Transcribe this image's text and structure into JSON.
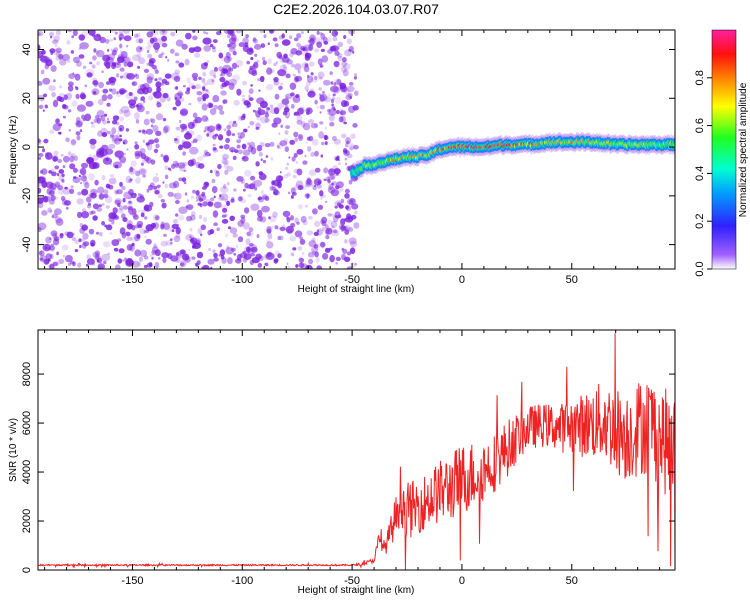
{
  "title": "C2E2.2026.104.03.07.R07",
  "colors": {
    "snr_line": "#ee2222",
    "noise_dots": "#7a1fe0",
    "axis": "#000000"
  },
  "colorbar": {
    "label": "Normalized spectral amplitude",
    "range": [
      0.0,
      1.0
    ],
    "ticks": [
      0.0,
      0.2,
      0.4,
      0.6,
      0.8
    ],
    "tick_labels": [
      "0.0",
      "0.2",
      "0.4",
      "0.6",
      "0.8"
    ]
  },
  "chart_data": [
    {
      "type": "heatmap",
      "xlabel": "Height of straight line (km)",
      "ylabel": "Frequency (Hz)",
      "xlim": [
        -193,
        97
      ],
      "ylim": [
        -50,
        48
      ],
      "xticks": [
        -150,
        -100,
        -50,
        0,
        50
      ],
      "xtick_labels": [
        "-150",
        "-100",
        "-50",
        "0",
        "50"
      ],
      "yticks": [
        -40,
        -20,
        0,
        20,
        40
      ],
      "ytick_labels": [
        "-40",
        "-20",
        "0",
        "20",
        "40"
      ],
      "noise_region_x": [
        -193,
        -48
      ],
      "ridge": {
        "x": [
          -50,
          -45,
          -40,
          -35,
          -30,
          -25,
          -20,
          -15,
          -10,
          -5,
          0,
          10,
          20,
          30,
          40,
          50,
          60,
          70,
          80,
          90,
          97
        ],
        "frequency": [
          -11,
          -8,
          -7,
          -6,
          -5,
          -4,
          -4,
          -3,
          -1,
          0,
          0,
          0,
          1,
          1,
          2,
          2,
          2,
          1,
          1,
          1,
          1
        ],
        "amplitude": [
          0.45,
          0.55,
          0.6,
          0.65,
          0.7,
          0.7,
          0.72,
          0.75,
          0.8,
          0.85,
          0.85,
          0.9,
          0.85,
          0.75,
          0.7,
          0.7,
          0.65,
          0.65,
          0.6,
          0.55,
          0.55
        ]
      }
    },
    {
      "type": "line",
      "xlabel": "Height of straight line (km)",
      "ylabel": "SNR (10 * v/v)",
      "xlim": [
        -193,
        97
      ],
      "ylim": [
        0,
        9800
      ],
      "xticks": [
        -150,
        -100,
        -50,
        0,
        50
      ],
      "xtick_labels": [
        "-150",
        "-100",
        "-50",
        "0",
        "50"
      ],
      "yticks": [
        0,
        2000,
        4000,
        6000,
        8000
      ],
      "ytick_labels": [
        "0",
        "2000",
        "4000",
        "6000",
        "8000"
      ],
      "series": [
        {
          "name": "SNR",
          "x": [
            -193,
            -150,
            -100,
            -60,
            -50,
            -45,
            -40,
            -38,
            -35,
            -30,
            -28,
            -25,
            -20,
            -15,
            -10,
            -5,
            0,
            5,
            10,
            15,
            20,
            25,
            30,
            35,
            40,
            45,
            50,
            55,
            60,
            65,
            70,
            75,
            80,
            85,
            90,
            95,
            97
          ],
          "values": [
            200,
            200,
            200,
            200,
            200,
            250,
            400,
            1200,
            900,
            2200,
            3100,
            2400,
            2600,
            2900,
            3200,
            3400,
            3700,
            3900,
            4100,
            4400,
            4900,
            5400,
            5800,
            5900,
            5900,
            5800,
            5900,
            5900,
            6000,
            6100,
            5700,
            5500,
            5800,
            6000,
            5500,
            5000,
            4800
          ],
          "spread": [
            30,
            30,
            30,
            30,
            30,
            60,
            100,
            250,
            300,
            900,
            1200,
            1200,
            1100,
            1200,
            1300,
            1400,
            1500,
            1400,
            1300,
            1200,
            1200,
            1000,
            900,
            900,
            900,
            1000,
            1200,
            1300,
            1500,
            1700,
            1800,
            1900,
            2000,
            2100,
            2200,
            2200,
            2200
          ]
        }
      ]
    }
  ]
}
